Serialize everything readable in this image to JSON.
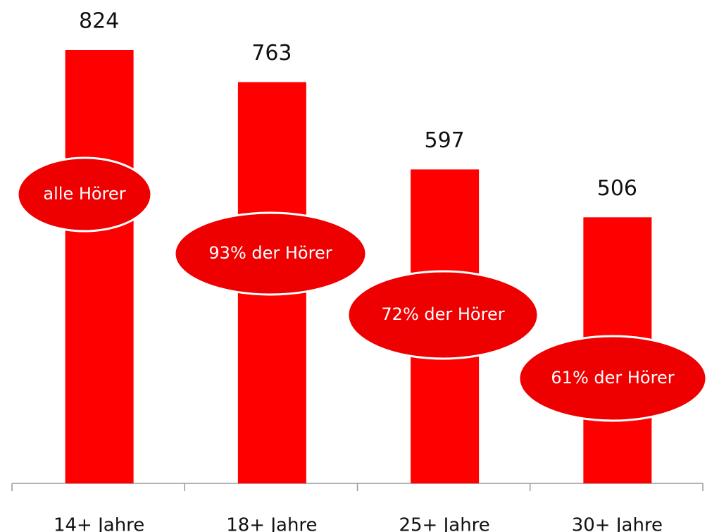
{
  "chart_data": {
    "type": "bar",
    "categories": [
      "14+ Jahre",
      "18+ Jahre",
      "25+ Jahre",
      "30+ Jahre"
    ],
    "values": [
      824,
      763,
      597,
      506
    ],
    "color": "#ff0000",
    "annotations": [
      "alle Hörer",
      "93% der Hörer",
      "72% der Hörer",
      "61% der Hörer"
    ]
  }
}
